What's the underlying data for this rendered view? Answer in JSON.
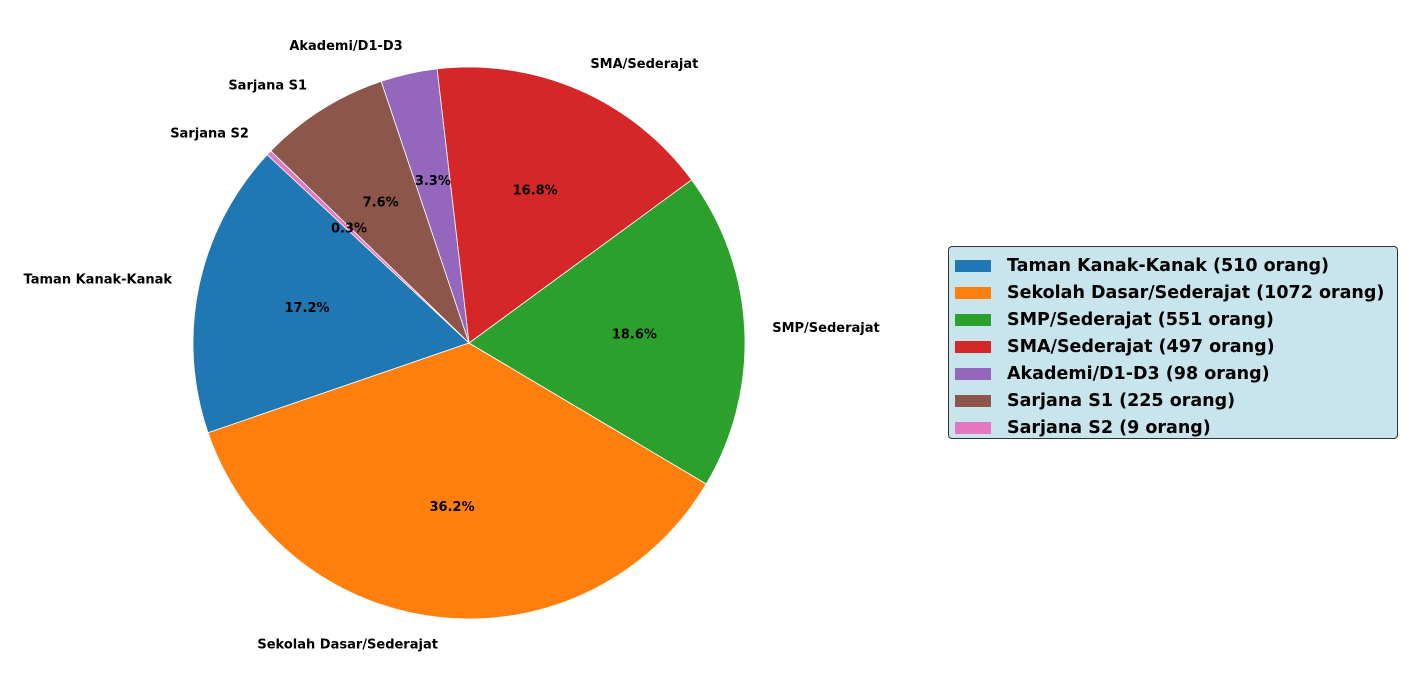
{
  "chart_data": {
    "type": "pie",
    "title": "",
    "start_angle_deg": 137,
    "direction": "counterclockwise",
    "slices": [
      {
        "label": "Taman Kanak-Kanak",
        "value": 510,
        "percent_label": "17.2%",
        "color": "#1f77b4",
        "legend": "Taman Kanak-Kanak (510 orang)"
      },
      {
        "label": "Sekolah Dasar/Sederajat",
        "value": 1072,
        "percent_label": "36.2%",
        "color": "#ff7f0e",
        "legend": "Sekolah Dasar/Sederajat (1072 orang)"
      },
      {
        "label": "SMP/Sederajat",
        "value": 551,
        "percent_label": "18.6%",
        "color": "#2ca02c",
        "legend": "SMP/Sederajat (551 orang)"
      },
      {
        "label": "SMA/Sederajat",
        "value": 497,
        "percent_label": "16.8%",
        "color": "#d62728",
        "legend": "SMA/Sederajat (497 orang)"
      },
      {
        "label": "Akademi/D1-D3",
        "value": 98,
        "percent_label": "3.3%",
        "color": "#9467bd",
        "legend": "Akademi/D1-D3 (98 orang)"
      },
      {
        "label": "Sarjana S1",
        "value": 225,
        "percent_label": "7.6%",
        "color": "#8c564b",
        "legend": "Sarjana S1 (225 orang)"
      },
      {
        "label": "Sarjana S2",
        "value": 9,
        "percent_label": "0.3%",
        "color": "#e377c2",
        "legend": "Sarjana S2 (9 orang)"
      }
    ],
    "legend_placement": "right",
    "legend_background": "#c8e4ec"
  }
}
